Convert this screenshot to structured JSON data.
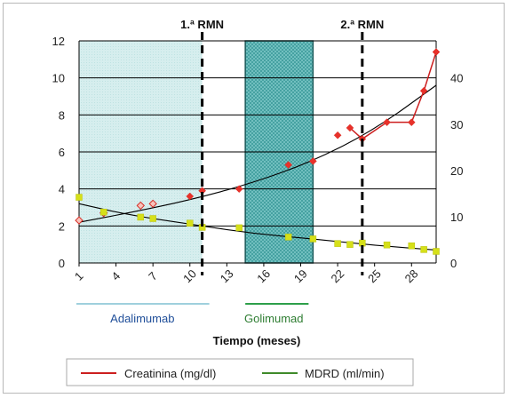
{
  "chart_data": {
    "type": "line",
    "title": "",
    "xlabel": "Tiempo (meses)",
    "ylabel": "",
    "x_ticks": [
      1,
      4,
      7,
      10,
      13,
      16,
      19,
      22,
      25,
      28
    ],
    "xlim": [
      1,
      30
    ],
    "ylim": [
      0,
      12
    ],
    "y_ticks": [
      0,
      2,
      4,
      6,
      8,
      10,
      12
    ],
    "y2lim": [
      0,
      48
    ],
    "y2_ticks": [
      0,
      10,
      20,
      30,
      40
    ],
    "grid": true,
    "series": [
      {
        "name": "Creatinina (mg/dl)",
        "axis": "left",
        "color": "#e8312a",
        "connected_from_index": 11,
        "points": [
          [
            1,
            2.3
          ],
          [
            3,
            2.7
          ],
          [
            6,
            3.1
          ],
          [
            7,
            3.2
          ],
          [
            10,
            3.6
          ],
          [
            11,
            3.9
          ],
          [
            14,
            4.0
          ],
          [
            18,
            5.3
          ],
          [
            20,
            5.5
          ],
          [
            22,
            6.9
          ],
          [
            23,
            7.3
          ],
          [
            24,
            6.7
          ],
          [
            26,
            7.6
          ],
          [
            28,
            7.6
          ],
          [
            29,
            9.3
          ],
          [
            30,
            11.4
          ]
        ]
      },
      {
        "name": "MDRD (ml/min)",
        "axis": "right",
        "color": "#d6e019",
        "points": [
          [
            1,
            14.2
          ],
          [
            3,
            11.0
          ],
          [
            6,
            9.9
          ],
          [
            7,
            9.6
          ],
          [
            10,
            8.6
          ],
          [
            11,
            7.7
          ],
          [
            14,
            7.6
          ],
          [
            18,
            5.6
          ],
          [
            20,
            5.2
          ],
          [
            22,
            4.2
          ],
          [
            23,
            4.0
          ],
          [
            24,
            4.3
          ],
          [
            26,
            3.9
          ],
          [
            28,
            3.7
          ],
          [
            29,
            2.9
          ],
          [
            30,
            2.5
          ]
        ]
      }
    ],
    "trendlines": [
      {
        "of": "Creatinina (mg/dl)",
        "points": [
          [
            1,
            2.2
          ],
          [
            5,
            2.7
          ],
          [
            10,
            3.4
          ],
          [
            15,
            4.3
          ],
          [
            20,
            5.5
          ],
          [
            25,
            7.2
          ],
          [
            30,
            9.6
          ]
        ]
      },
      {
        "of": "MDRD (ml/min)",
        "points": [
          [
            1,
            3.2
          ],
          [
            5,
            2.6
          ],
          [
            10,
            2.1
          ],
          [
            15,
            1.6
          ],
          [
            20,
            1.3
          ],
          [
            25,
            0.95
          ],
          [
            30,
            0.7
          ]
        ]
      }
    ],
    "treatments": [
      {
        "label": "Adalimumab",
        "start": 1,
        "end": 11,
        "fill": "#d3ecec",
        "underline": "#9fd0dd",
        "label_color": "#1f4e99"
      },
      {
        "label": "Golimumad",
        "start": 14.5,
        "end": 20,
        "fill": "#3a9a9a",
        "underline": "#2e9f4a",
        "label_color": "#2e7d32"
      }
    ],
    "markers": [
      {
        "label": "1.ª RMN",
        "x": 11
      },
      {
        "label": "2.ª RMN",
        "x": 24
      }
    ],
    "legend_position": "bottom",
    "colors": {
      "creatinina_line": "#cc1f1f",
      "mdrd_line": "#3f8a2a",
      "trend": "#000000"
    }
  }
}
